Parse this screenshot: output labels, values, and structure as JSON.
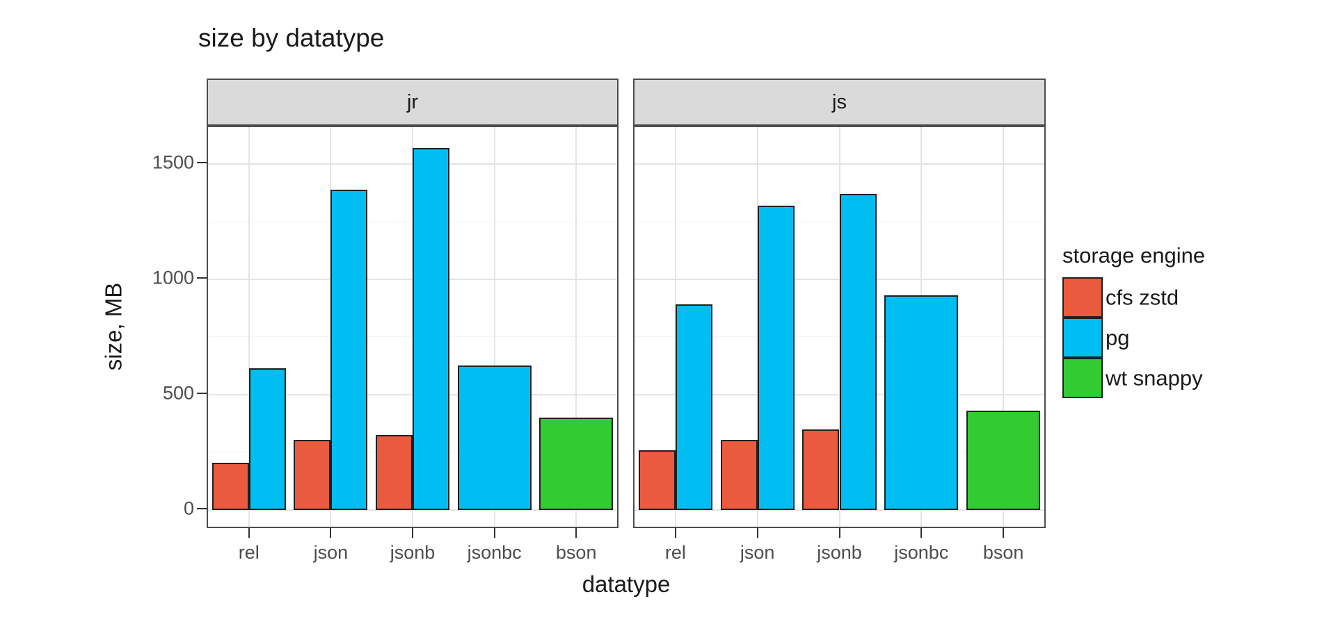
{
  "chart_data": {
    "type": "bar",
    "title": "size by datatype",
    "xlabel": "datatype",
    "ylabel": "size, MB",
    "categories": [
      "rel",
      "json",
      "jsonb",
      "jsonbc",
      "bson"
    ],
    "facets": [
      {
        "label": "jr",
        "series": [
          {
            "name": "cfs zstd",
            "values": [
              205,
              305,
              325,
              null,
              null
            ]
          },
          {
            "name": "pg",
            "values": [
              615,
              1390,
              1570,
              625,
              null
            ]
          },
          {
            "name": "wt snappy",
            "values": [
              null,
              null,
              null,
              null,
              400
            ]
          }
        ]
      },
      {
        "label": "js",
        "series": [
          {
            "name": "cfs zstd",
            "values": [
              260,
              305,
              350,
              null,
              null
            ]
          },
          {
            "name": "pg",
            "values": [
              890,
              1320,
              1370,
              930,
              null
            ]
          },
          {
            "name": "wt snappy",
            "values": [
              null,
              null,
              null,
              null,
              430
            ]
          }
        ]
      }
    ],
    "legend": {
      "title": "storage engine",
      "position": "right",
      "entries": [
        {
          "label": "cfs zstd",
          "color": "#EA5A3F"
        },
        {
          "label": "pg",
          "color": "#00BEF2"
        },
        {
          "label": "wt snappy",
          "color": "#32CC32"
        }
      ]
    },
    "y_ticks": [
      0,
      500,
      1000,
      1500
    ],
    "y_minor_ticks": [
      250,
      750,
      1250
    ],
    "ylim": [
      -85,
      1660
    ],
    "grid": "major+minor horizontal, major vertical at category centers"
  },
  "colors": {
    "grid_major": "#E4E4E4",
    "grid_minor": "#F2F2F2",
    "panel_border": "#4D4D4D",
    "strip_bg": "#DADADA",
    "bar_outline": "#202020",
    "tick_text": "#4D4D4D",
    "text": "#1A1A1A"
  }
}
